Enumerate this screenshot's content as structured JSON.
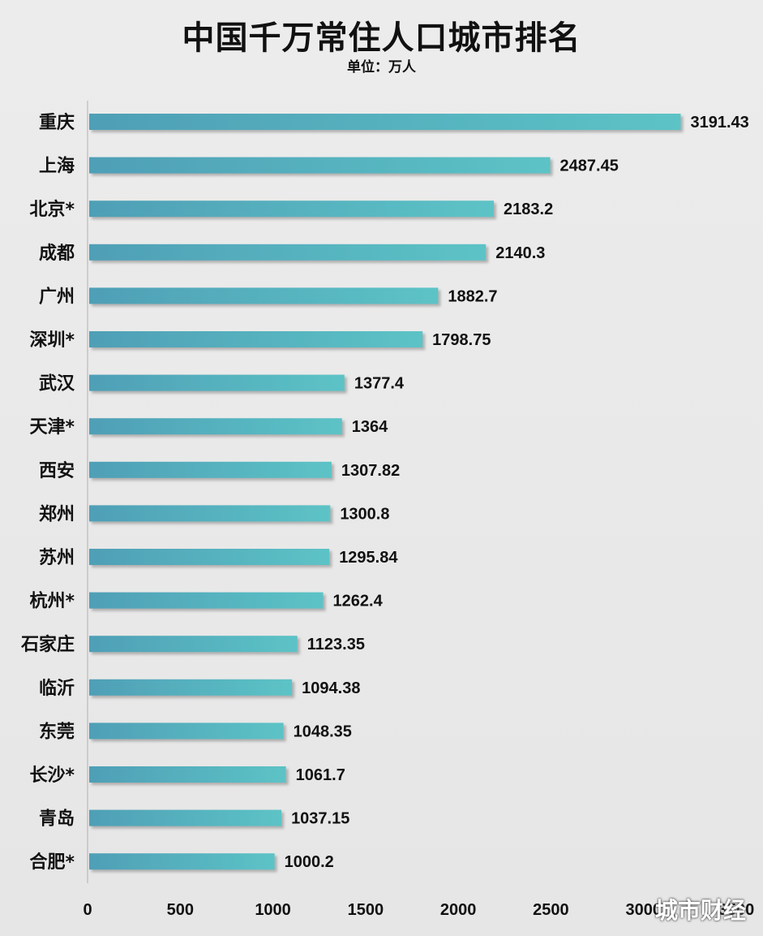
{
  "title": "中国千万常住人口城市排名",
  "subtitle": "单位：万人",
  "watermark": "城市财经",
  "colors": {
    "bar_start": "#4f9fb6",
    "bar_end": "#5cc3c6",
    "background": "#e9e9e9",
    "axis": "#aaaaaa"
  },
  "chart_data": {
    "type": "bar",
    "orientation": "horizontal",
    "title": "中国千万常住人口城市排名",
    "subtitle": "单位：万人",
    "categories": [
      "重庆",
      "上海",
      "北京*",
      "成都",
      "广州",
      "深圳*",
      "武汉",
      "天津*",
      "西安",
      "郑州",
      "苏州",
      "杭州*",
      "石家庄",
      "临沂",
      "东莞",
      "长沙*",
      "青岛",
      "合肥*"
    ],
    "values": [
      3191.43,
      2487.45,
      2183.2,
      2140.3,
      1882.7,
      1798.75,
      1377.4,
      1364,
      1307.82,
      1300.8,
      1295.84,
      1262.4,
      1123.35,
      1094.38,
      1048.35,
      1061.7,
      1037.15,
      1000.2
    ],
    "value_labels": [
      "3191.43",
      "2487.45",
      "2183.2",
      "2140.3",
      "1882.7",
      "1798.75",
      "1377.4",
      "1364",
      "1307.82",
      "1300.8",
      "1295.84",
      "1262.4",
      "1123.35",
      "1094.38",
      "1048.35",
      "1061.7",
      "1037.15",
      "1000.2"
    ],
    "xticks": [
      "0",
      "500",
      "1000",
      "1500",
      "2000",
      "2500",
      "3000",
      "3500"
    ],
    "xlim": [
      0,
      3500
    ],
    "grid": false,
    "legend": "none"
  }
}
